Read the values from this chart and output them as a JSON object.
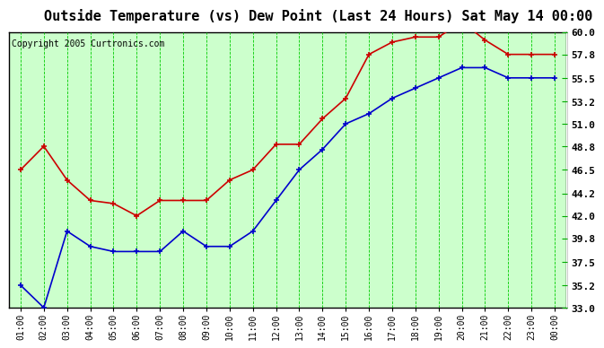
{
  "title": "Outside Temperature (vs) Dew Point (Last 24 Hours) Sat May 14 00:00",
  "copyright": "Copyright 2005 Curtronics.com",
  "x_labels": [
    "01:00",
    "02:00",
    "03:00",
    "04:00",
    "05:00",
    "06:00",
    "07:00",
    "08:00",
    "09:00",
    "10:00",
    "11:00",
    "12:00",
    "13:00",
    "14:00",
    "15:00",
    "16:00",
    "17:00",
    "18:00",
    "19:00",
    "20:00",
    "21:00",
    "22:00",
    "23:00",
    "00:00"
  ],
  "temp_data": [
    35.2,
    33.0,
    40.5,
    39.0,
    38.5,
    38.5,
    38.5,
    40.5,
    39.0,
    39.0,
    40.5,
    43.5,
    46.5,
    48.5,
    51.0,
    52.0,
    53.5,
    54.5,
    55.5,
    56.5,
    56.5,
    55.5,
    55.5,
    55.5
  ],
  "dew_data": [
    46.5,
    48.8,
    45.5,
    43.5,
    43.2,
    42.0,
    43.5,
    43.5,
    43.5,
    45.5,
    46.5,
    49.0,
    49.0,
    51.5,
    53.5,
    57.8,
    59.0,
    59.5,
    59.5,
    61.0,
    59.2,
    57.8,
    57.8,
    57.8
  ],
  "temp_color": "#0000cc",
  "dew_color": "#cc0000",
  "bg_color": "#ffffff",
  "plot_bg_color": "#ccffcc",
  "grid_color": "#00cc00",
  "title_fontsize": 11,
  "yticks": [
    60.0,
    57.8,
    55.5,
    53.2,
    51.0,
    48.8,
    46.5,
    44.2,
    42.0,
    39.8,
    37.5,
    35.2,
    33.0
  ],
  "ylabel_right": [
    "60.0",
    "57.8",
    "55.5",
    "53.2",
    "51.0",
    "48.8",
    "46.5",
    "44.2",
    "42.0",
    "39.8",
    "37.5",
    "35.2",
    "33.0"
  ],
  "ymin": 33.0,
  "ymax": 60.0
}
